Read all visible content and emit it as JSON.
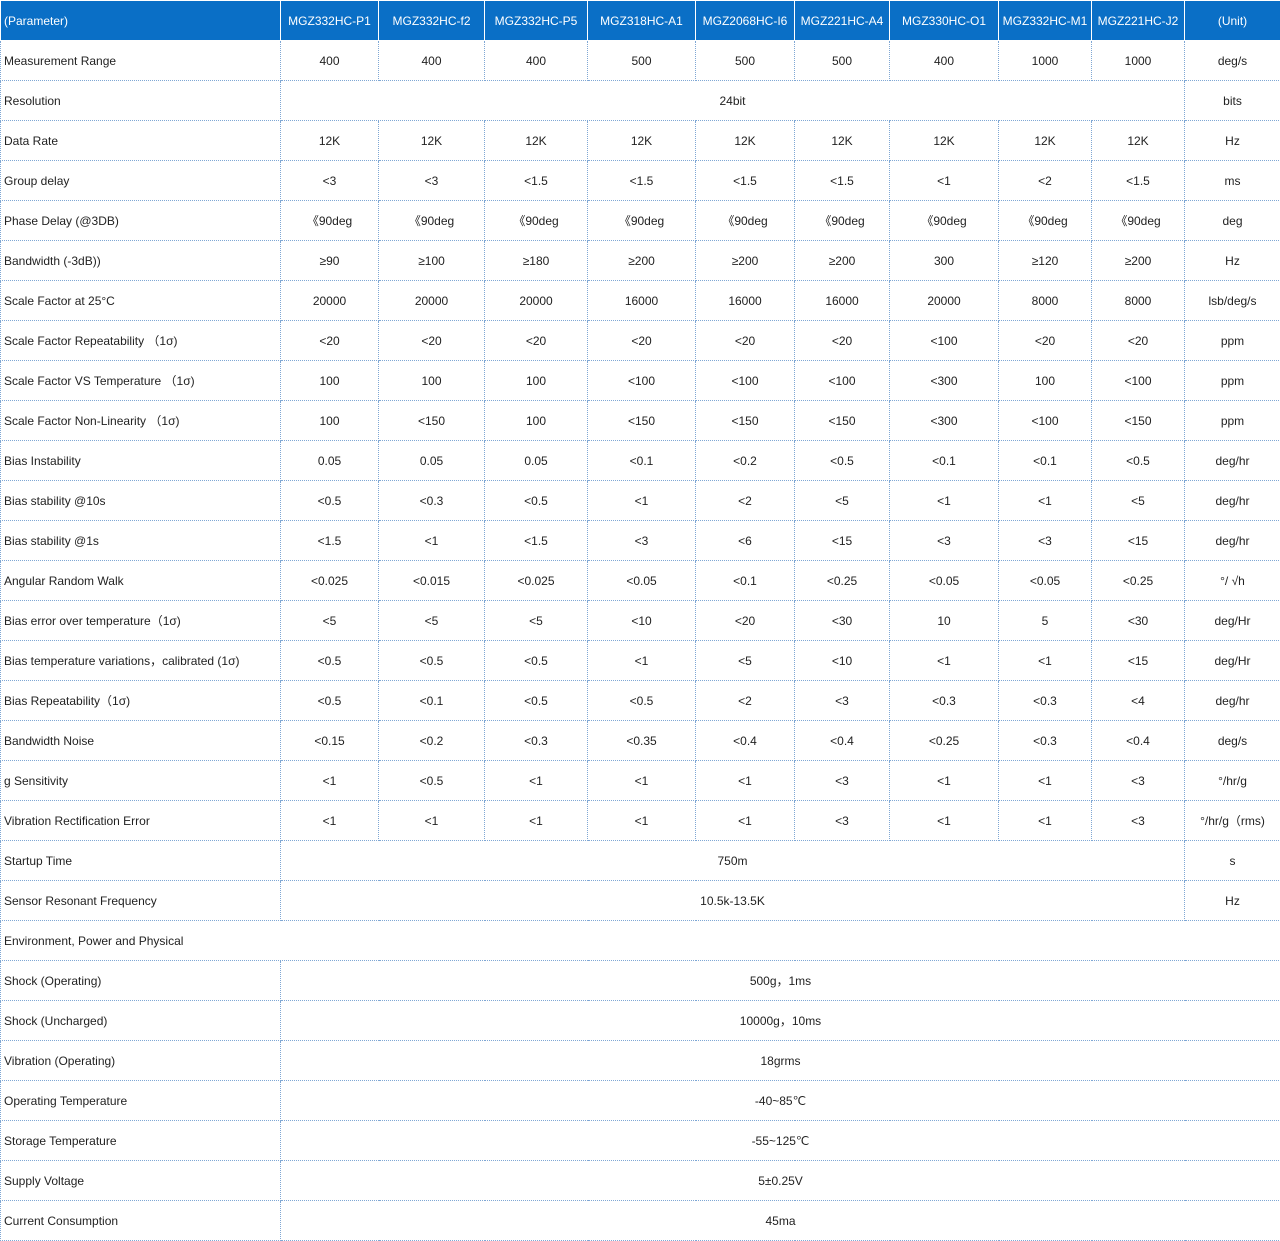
{
  "header": {
    "parameter": "(Parameter)",
    "models": [
      "MGZ332HC-P1",
      "MGZ332HC-f2",
      "MGZ332HC-P5",
      "MGZ318HC-A1",
      "MGZ2068HC-I6",
      "MGZ221HC-A4",
      "MGZ330HC-O1",
      "MGZ332HC-M1",
      "MGZ221HC-J2"
    ],
    "unit": "(Unit)"
  },
  "rows": [
    {
      "label": "Measurement Range",
      "values": [
        "400",
        "400",
        "400",
        "500",
        "500",
        "500",
        "400",
        "1000",
        "1000"
      ],
      "unit": "deg/s"
    },
    {
      "label": "Resolution",
      "merged": "24bit",
      "unit": "bits"
    },
    {
      "label": "Data Rate",
      "values": [
        "12K",
        "12K",
        "12K",
        "12K",
        "12K",
        "12K",
        "12K",
        "12K",
        "12K"
      ],
      "unit": "Hz"
    },
    {
      "label": "Group delay",
      "values": [
        "<3",
        "<3",
        "<1.5",
        "<1.5",
        "<1.5",
        "<1.5",
        "<1",
        "<2",
        "<1.5"
      ],
      "unit": "ms"
    },
    {
      "label": "Phase Delay (@3DB)",
      "values": [
        "《90deg",
        "《90deg",
        "《90deg",
        "《90deg",
        "《90deg",
        "《90deg",
        "《90deg",
        "《90deg",
        "《90deg"
      ],
      "unit": "deg"
    },
    {
      "label": "Bandwidth (-3dB))",
      "values": [
        "≥90",
        "≥100",
        "≥180",
        "≥200",
        "≥200",
        "≥200",
        "300",
        "≥120",
        "≥200"
      ],
      "unit": "Hz"
    },
    {
      "label": "Scale Factor at 25°C",
      "values": [
        "20000",
        "20000",
        "20000",
        "16000",
        "16000",
        "16000",
        "20000",
        "8000",
        "8000"
      ],
      "unit": "lsb/deg/s"
    },
    {
      "label": "Scale Factor Repeatability （1σ)",
      "values": [
        "<20",
        "<20",
        "<20",
        "<20",
        "<20",
        "<20",
        "<100",
        "<20",
        "<20"
      ],
      "unit": "ppm"
    },
    {
      "label": "Scale Factor VS Temperature （1σ)",
      "values": [
        "100",
        "100",
        "100",
        "<100",
        "<100",
        "<100",
        "<300",
        "100",
        "<100"
      ],
      "unit": "ppm"
    },
    {
      "label": "Scale Factor Non-Linearity （1σ)",
      "values": [
        "100",
        "<150",
        "100",
        "<150",
        "<150",
        "<150",
        "<300",
        "<100",
        "<150"
      ],
      "unit": "ppm"
    },
    {
      "label": "Bias Instability",
      "values": [
        "0.05",
        "0.05",
        "0.05",
        "<0.1",
        "<0.2",
        "<0.5",
        "<0.1",
        "<0.1",
        "<0.5"
      ],
      "unit": "deg/hr"
    },
    {
      "label": "Bias stability @10s",
      "values": [
        "<0.5",
        "<0.3",
        "<0.5",
        "<1",
        "<2",
        "<5",
        "<1",
        "<1",
        "<5"
      ],
      "unit": "deg/hr"
    },
    {
      "label": "Bias stability @1s",
      "values": [
        "<1.5",
        "<1",
        "<1.5",
        "<3",
        "<6",
        "<15",
        "<3",
        "<3",
        "<15"
      ],
      "unit": "deg/hr"
    },
    {
      "label": "Angular Random Walk",
      "values": [
        "<0.025",
        "<0.015",
        "<0.025",
        "<0.05",
        "<0.1",
        "<0.25",
        "<0.05",
        "<0.05",
        "<0.25"
      ],
      "unit": "°/ √h"
    },
    {
      "label": "Bias error over temperature（1σ)",
      "values": [
        "<5",
        "<5",
        "<5",
        "<10",
        "<20",
        "<30",
        "10",
        "5",
        "<30"
      ],
      "unit": "deg/Hr"
    },
    {
      "label": "Bias temperature variations，calibrated (1σ)",
      "values": [
        "<0.5",
        "<0.5",
        "<0.5",
        "<1",
        "<5",
        "<10",
        "<1",
        "<1",
        "<15"
      ],
      "unit": "deg/Hr"
    },
    {
      "label": "Bias Repeatability（1σ)",
      "values": [
        "<0.5",
        "<0.1",
        "<0.5",
        "<0.5",
        "<2",
        "<3",
        "<0.3",
        "<0.3",
        "<4"
      ],
      "unit": "deg/hr"
    },
    {
      "label": "Bandwidth Noise",
      "values": [
        "<0.15",
        "<0.2",
        "<0.3",
        "<0.35",
        "<0.4",
        "<0.4",
        "<0.25",
        "<0.3",
        "<0.4"
      ],
      "unit": "deg/s"
    },
    {
      "label": "g Sensitivity",
      "values": [
        "<1",
        "<0.5",
        "<1",
        "<1",
        "<1",
        "<3",
        "<1",
        "<1",
        "<3"
      ],
      "unit": "°/hr/g"
    },
    {
      "label": "Vibration Rectification Error",
      "values": [
        "<1",
        "<1",
        "<1",
        "<1",
        "<1",
        "<3",
        "<1",
        "<1",
        "<3"
      ],
      "unit": "°/hr/g（rms)"
    },
    {
      "label": "Startup Time",
      "merged": "750m",
      "unit": "s"
    },
    {
      "label": "Sensor Resonant Frequency",
      "merged": "10.5k-13.5K",
      "unit": "Hz"
    }
  ],
  "section_title": "Environment, Power and Physical",
  "env_rows": [
    {
      "label": "Shock (Operating)",
      "value": "500g，1ms"
    },
    {
      "label": "Shock (Uncharged)",
      "value": "10000g，10ms"
    },
    {
      "label": "Vibration (Operating)",
      "value": "18grms"
    },
    {
      "label": "Operating Temperature",
      "value": "-40~85℃"
    },
    {
      "label": "Storage Temperature",
      "value": "-55~125℃"
    },
    {
      "label": "Supply Voltage",
      "value": "5±0.25V"
    },
    {
      "label": "Current Consumption",
      "value": "45ma"
    }
  ],
  "colors": {
    "header_bg": "#0a6fc6",
    "border": "#7fa7d4"
  }
}
